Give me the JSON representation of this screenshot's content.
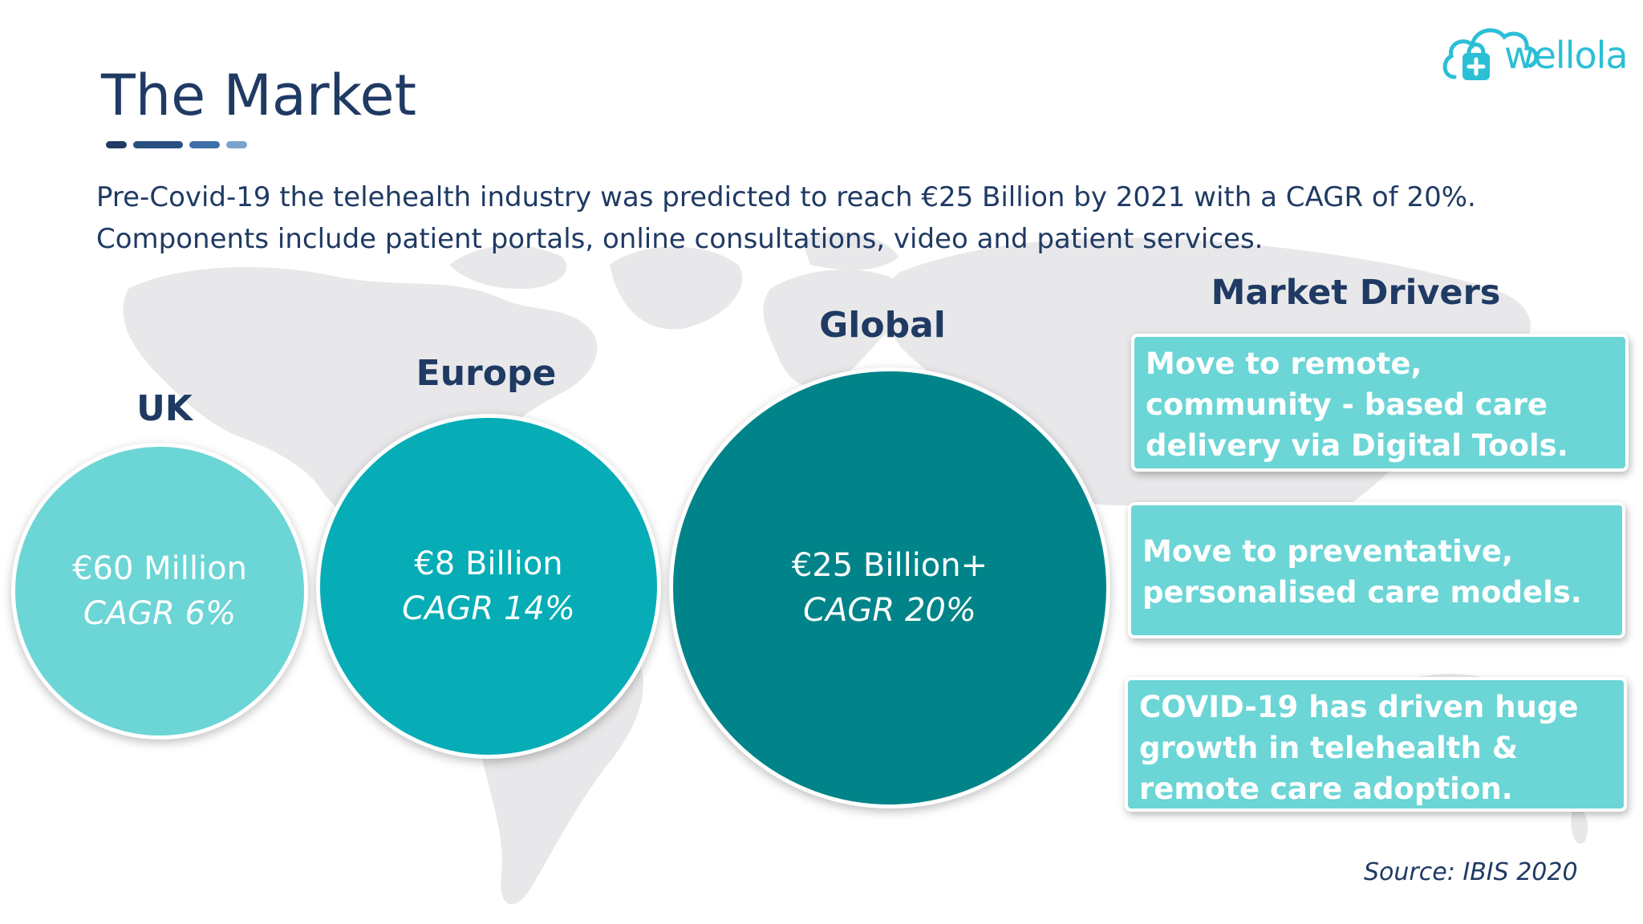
{
  "slide": {
    "title": "The Market",
    "intro_lines": [
      "Pre-Covid-19 the telehealth industry was predicted to reach €25 Billion by 2021 with a CAGR of 20%.",
      "Components include patient portals, online consultations, video and patient services."
    ],
    "brand": {
      "name": "wellola"
    },
    "colors": {
      "title": "#1f3a63",
      "uk": "#6cd5d6",
      "europe": "#06adb6",
      "global": "#008489",
      "driver_box": "#6cd5d6",
      "underline": [
        "#1f3a63",
        "#284f80",
        "#3f6fa8",
        "#7aa3cf"
      ]
    },
    "markets": [
      {
        "label": "UK",
        "amount": "€60 Million",
        "cagr": "CAGR 6%"
      },
      {
        "label": "Europe",
        "amount": "€8 Billion",
        "cagr": "CAGR 14%"
      },
      {
        "label": "Global",
        "amount": "€25 Billion+",
        "cagr": "CAGR 20%"
      }
    ],
    "drivers": {
      "title": "Market Drivers",
      "items": [
        "Move to remote, community - based care delivery via Digital Tools.",
        "Move to preventative, personalised care models.",
        "COVID-19 has driven huge growth in telehealth & remote care adoption."
      ]
    },
    "source": "Source: IBIS 2020"
  }
}
